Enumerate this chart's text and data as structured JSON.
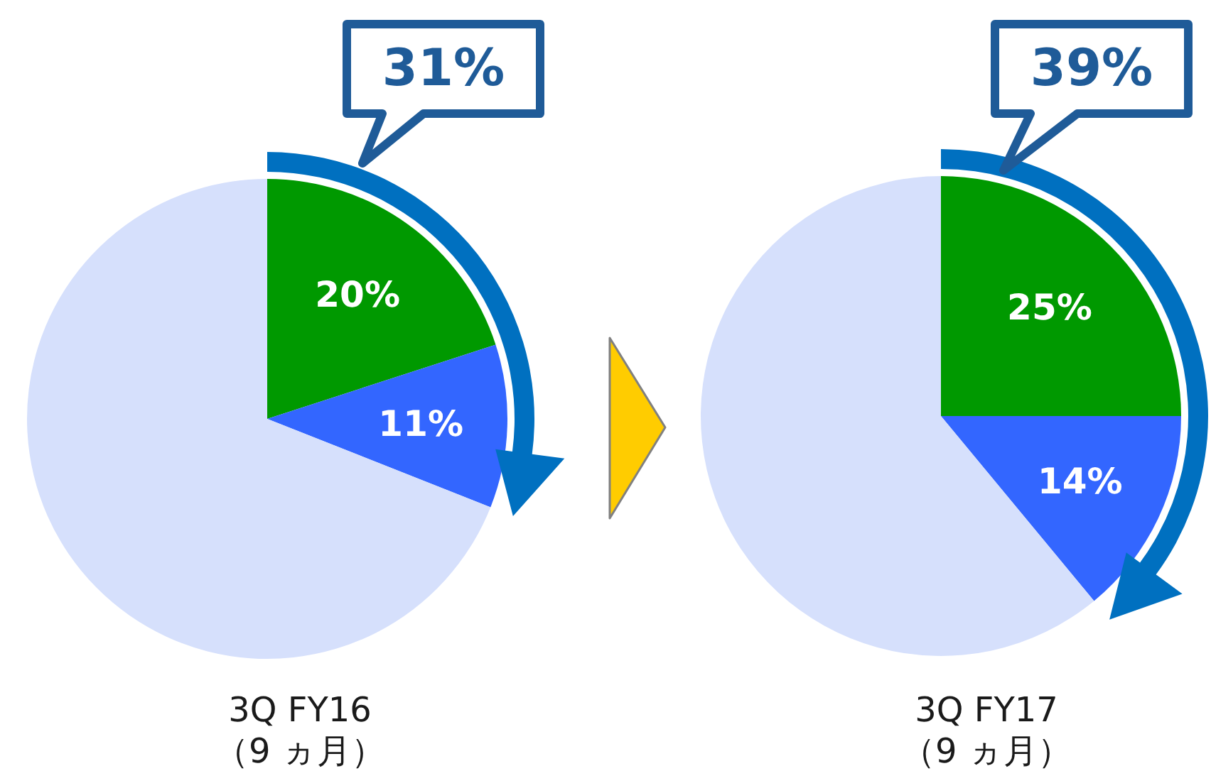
{
  "chart_data": [
    {
      "type": "pie",
      "title": "3Q FY16",
      "subtitle": "（9 ヵ月）",
      "categories": [
        null,
        null,
        null
      ],
      "values": [
        20,
        11,
        69
      ],
      "colors": [
        "#009900",
        "#3366ff",
        "#d6e0fc"
      ],
      "value_labels": [
        "20%",
        "11%",
        null
      ],
      "annotations": [
        "31%"
      ]
    },
    {
      "type": "pie",
      "title": "3Q FY17",
      "subtitle": "（9 ヵ月）",
      "categories": [
        null,
        null,
        null
      ],
      "values": [
        25,
        14,
        61
      ],
      "colors": [
        "#009900",
        "#3366ff",
        "#d6e0fc"
      ],
      "value_labels": [
        "25%",
        "14%",
        null
      ],
      "annotations": [
        "39%"
      ]
    }
  ]
}
